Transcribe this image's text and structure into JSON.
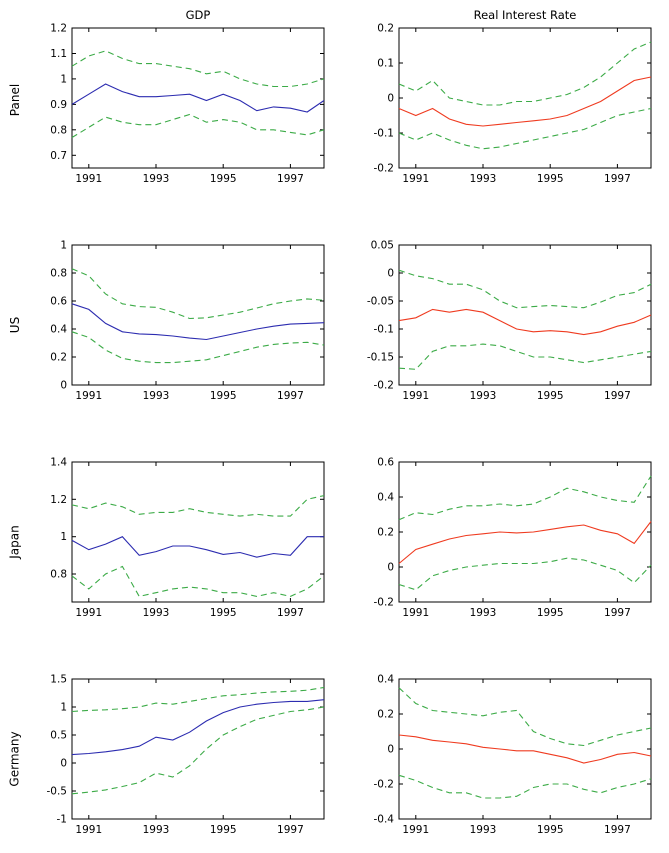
{
  "figure": {
    "column_titles": [
      "GDP",
      "Real Interest Rate"
    ],
    "row_labels": [
      "Panel",
      "US",
      "Japan",
      "Germany"
    ]
  },
  "colors": {
    "line_blue": "#2c2cb0",
    "line_red": "#ef3b20",
    "band_green": "#3cab47",
    "axis_black": "#000000"
  },
  "chart_data": [
    {
      "id": "panel-gdp",
      "type": "line",
      "row": "Panel",
      "title": "GDP",
      "xlabel": "",
      "ylabel": "Panel",
      "xlim": [
        1990.5,
        1998
      ],
      "ylim": [
        0.65,
        1.2
      ],
      "xticks": [
        1991,
        1993,
        1995,
        1997
      ],
      "yticks": [
        0.7,
        0.8,
        0.9,
        1,
        1.1,
        1.2
      ],
      "x": [
        1990.5,
        1991,
        1991.5,
        1992,
        1992.5,
        1993,
        1993.5,
        1994,
        1994.5,
        1995,
        1995.5,
        1996,
        1996.5,
        1997,
        1997.5,
        1998
      ],
      "series": [
        {
          "name": "point-estimate",
          "style": "solid",
          "color": "#2c2cb0",
          "values": [
            0.9,
            0.94,
            0.98,
            0.95,
            0.93,
            0.93,
            0.935,
            0.94,
            0.915,
            0.94,
            0.915,
            0.875,
            0.89,
            0.885,
            0.87,
            0.915
          ]
        },
        {
          "name": "upper-band",
          "style": "dashed",
          "color": "#3cab47",
          "values": [
            1.05,
            1.09,
            1.11,
            1.08,
            1.06,
            1.06,
            1.05,
            1.04,
            1.02,
            1.03,
            1.0,
            0.98,
            0.97,
            0.97,
            0.98,
            1.0
          ]
        },
        {
          "name": "lower-band",
          "style": "dashed",
          "color": "#3cab47",
          "values": [
            0.77,
            0.81,
            0.85,
            0.83,
            0.82,
            0.82,
            0.84,
            0.86,
            0.83,
            0.84,
            0.83,
            0.8,
            0.8,
            0.79,
            0.78,
            0.8
          ]
        }
      ]
    },
    {
      "id": "panel-real-interest-rate",
      "type": "line",
      "row": "Panel",
      "title": "Real Interest Rate",
      "xlabel": "",
      "ylabel": "",
      "xlim": [
        1990.5,
        1998
      ],
      "ylim": [
        -0.2,
        0.2
      ],
      "xticks": [
        1991,
        1993,
        1995,
        1997
      ],
      "yticks": [
        -0.2,
        -0.1,
        0,
        0.1,
        0.2
      ],
      "x": [
        1990.5,
        1991,
        1991.5,
        1992,
        1992.5,
        1993,
        1993.5,
        1994,
        1994.5,
        1995,
        1995.5,
        1996,
        1996.5,
        1997,
        1997.5,
        1998
      ],
      "series": [
        {
          "name": "point-estimate",
          "style": "solid",
          "color": "#ef3b20",
          "values": [
            -0.03,
            -0.05,
            -0.03,
            -0.06,
            -0.075,
            -0.08,
            -0.075,
            -0.07,
            -0.065,
            -0.06,
            -0.05,
            -0.03,
            -0.01,
            0.02,
            0.05,
            0.06
          ]
        },
        {
          "name": "upper-band",
          "style": "dashed",
          "color": "#3cab47",
          "values": [
            0.04,
            0.02,
            0.05,
            0.0,
            -0.01,
            -0.02,
            -0.02,
            -0.01,
            -0.01,
            0.0,
            0.01,
            0.03,
            0.06,
            0.1,
            0.14,
            0.16
          ]
        },
        {
          "name": "lower-band",
          "style": "dashed",
          "color": "#3cab47",
          "values": [
            -0.1,
            -0.12,
            -0.1,
            -0.12,
            -0.135,
            -0.145,
            -0.14,
            -0.13,
            -0.12,
            -0.11,
            -0.1,
            -0.09,
            -0.07,
            -0.05,
            -0.04,
            -0.03
          ]
        }
      ]
    },
    {
      "id": "us-gdp",
      "type": "line",
      "row": "US",
      "title": "",
      "xlabel": "",
      "ylabel": "US",
      "xlim": [
        1990.5,
        1998
      ],
      "ylim": [
        0,
        1
      ],
      "xticks": [
        1991,
        1993,
        1995,
        1997
      ],
      "yticks": [
        0,
        0.2,
        0.4,
        0.6,
        0.8,
        1
      ],
      "x": [
        1990.5,
        1991,
        1991.5,
        1992,
        1992.5,
        1993,
        1993.5,
        1994,
        1994.5,
        1995,
        1995.5,
        1996,
        1996.5,
        1997,
        1997.5,
        1998
      ],
      "series": [
        {
          "name": "point-estimate",
          "style": "solid",
          "color": "#2c2cb0",
          "values": [
            0.58,
            0.54,
            0.44,
            0.38,
            0.365,
            0.36,
            0.35,
            0.335,
            0.325,
            0.35,
            0.375,
            0.4,
            0.42,
            0.435,
            0.44,
            0.445
          ]
        },
        {
          "name": "upper-band",
          "style": "dashed",
          "color": "#3cab47",
          "values": [
            0.83,
            0.78,
            0.65,
            0.58,
            0.56,
            0.555,
            0.52,
            0.475,
            0.48,
            0.5,
            0.52,
            0.55,
            0.58,
            0.6,
            0.615,
            0.605
          ]
        },
        {
          "name": "lower-band",
          "style": "dashed",
          "color": "#3cab47",
          "values": [
            0.38,
            0.34,
            0.25,
            0.19,
            0.17,
            0.16,
            0.16,
            0.17,
            0.18,
            0.21,
            0.24,
            0.27,
            0.29,
            0.3,
            0.305,
            0.285
          ]
        }
      ]
    },
    {
      "id": "us-real-interest-rate",
      "type": "line",
      "row": "US",
      "title": "",
      "xlabel": "",
      "ylabel": "",
      "xlim": [
        1990.5,
        1998
      ],
      "ylim": [
        -0.2,
        0.05
      ],
      "xticks": [
        1991,
        1993,
        1995,
        1997
      ],
      "yticks": [
        -0.2,
        -0.15,
        -0.1,
        -0.05,
        0,
        0.05
      ],
      "x": [
        1990.5,
        1991,
        1991.5,
        1992,
        1992.5,
        1993,
        1993.5,
        1994,
        1994.5,
        1995,
        1995.5,
        1996,
        1996.5,
        1997,
        1997.5,
        1998
      ],
      "series": [
        {
          "name": "point-estimate",
          "style": "solid",
          "color": "#ef3b20",
          "values": [
            -0.085,
            -0.08,
            -0.065,
            -0.07,
            -0.065,
            -0.07,
            -0.085,
            -0.1,
            -0.105,
            -0.103,
            -0.105,
            -0.11,
            -0.105,
            -0.095,
            -0.088,
            -0.075
          ]
        },
        {
          "name": "upper-band",
          "style": "dashed",
          "color": "#3cab47",
          "values": [
            0.005,
            -0.005,
            -0.01,
            -0.02,
            -0.02,
            -0.03,
            -0.05,
            -0.062,
            -0.06,
            -0.058,
            -0.06,
            -0.062,
            -0.052,
            -0.04,
            -0.035,
            -0.02
          ]
        },
        {
          "name": "lower-band",
          "style": "dashed",
          "color": "#3cab47",
          "values": [
            -0.17,
            -0.172,
            -0.14,
            -0.13,
            -0.13,
            -0.127,
            -0.13,
            -0.14,
            -0.15,
            -0.15,
            -0.155,
            -0.16,
            -0.155,
            -0.15,
            -0.145,
            -0.14
          ]
        }
      ]
    },
    {
      "id": "japan-gdp",
      "type": "line",
      "row": "Japan",
      "title": "",
      "xlabel": "",
      "ylabel": "Japan",
      "xlim": [
        1990.5,
        1998
      ],
      "ylim": [
        0.65,
        1.4
      ],
      "xticks": [
        1991,
        1993,
        1995,
        1997
      ],
      "yticks": [
        0.8,
        1,
        1.2,
        1.4
      ],
      "x": [
        1990.5,
        1991,
        1991.5,
        1992,
        1992.5,
        1993,
        1993.5,
        1994,
        1994.5,
        1995,
        1995.5,
        1996,
        1996.5,
        1997,
        1997.5,
        1998
      ],
      "series": [
        {
          "name": "point-estimate",
          "style": "solid",
          "color": "#2c2cb0",
          "values": [
            0.98,
            0.93,
            0.96,
            1.0,
            0.9,
            0.92,
            0.95,
            0.95,
            0.93,
            0.905,
            0.915,
            0.89,
            0.91,
            0.9,
            1.0,
            1.0
          ]
        },
        {
          "name": "upper-band",
          "style": "dashed",
          "color": "#3cab47",
          "values": [
            1.17,
            1.15,
            1.18,
            1.16,
            1.12,
            1.13,
            1.13,
            1.15,
            1.13,
            1.12,
            1.11,
            1.12,
            1.11,
            1.11,
            1.2,
            1.22
          ]
        },
        {
          "name": "lower-band",
          "style": "dashed",
          "color": "#3cab47",
          "values": [
            0.79,
            0.72,
            0.8,
            0.84,
            0.68,
            0.7,
            0.72,
            0.73,
            0.72,
            0.7,
            0.7,
            0.68,
            0.7,
            0.68,
            0.72,
            0.79
          ]
        }
      ]
    },
    {
      "id": "japan-real-interest-rate",
      "type": "line",
      "row": "Japan",
      "title": "",
      "xlabel": "",
      "ylabel": "",
      "xlim": [
        1990.5,
        1998
      ],
      "ylim": [
        -0.2,
        0.6
      ],
      "xticks": [
        1991,
        1993,
        1995,
        1997
      ],
      "yticks": [
        -0.2,
        0,
        0.2,
        0.4,
        0.6
      ],
      "x": [
        1990.5,
        1991,
        1991.5,
        1992,
        1992.5,
        1993,
        1993.5,
        1994,
        1994.5,
        1995,
        1995.5,
        1996,
        1996.5,
        1997,
        1997.5,
        1998
      ],
      "series": [
        {
          "name": "point-estimate",
          "style": "solid",
          "color": "#ef3b20",
          "values": [
            0.02,
            0.1,
            0.13,
            0.16,
            0.18,
            0.19,
            0.2,
            0.195,
            0.2,
            0.215,
            0.23,
            0.24,
            0.21,
            0.19,
            0.135,
            0.26
          ]
        },
        {
          "name": "upper-band",
          "style": "dashed",
          "color": "#3cab47",
          "values": [
            0.27,
            0.31,
            0.3,
            0.33,
            0.35,
            0.35,
            0.36,
            0.35,
            0.36,
            0.4,
            0.45,
            0.43,
            0.4,
            0.38,
            0.37,
            0.52
          ]
        },
        {
          "name": "lower-band",
          "style": "dashed",
          "color": "#3cab47",
          "values": [
            -0.1,
            -0.13,
            -0.05,
            -0.02,
            0.0,
            0.01,
            0.02,
            0.02,
            0.02,
            0.03,
            0.05,
            0.04,
            0.01,
            -0.02,
            -0.09,
            0.01
          ]
        }
      ]
    },
    {
      "id": "germany-gdp",
      "type": "line",
      "row": "Germany",
      "title": "",
      "xlabel": "",
      "ylabel": "Germany",
      "xlim": [
        1990.5,
        1998
      ],
      "ylim": [
        -1,
        1.5
      ],
      "xticks": [
        1991,
        1993,
        1995,
        1997
      ],
      "yticks": [
        -1,
        -0.5,
        0,
        0.5,
        1,
        1.5
      ],
      "x": [
        1990.5,
        1991,
        1991.5,
        1992,
        1992.5,
        1993,
        1993.5,
        1994,
        1994.5,
        1995,
        1995.5,
        1996,
        1996.5,
        1997,
        1997.5,
        1998
      ],
      "series": [
        {
          "name": "point-estimate",
          "style": "solid",
          "color": "#2c2cb0",
          "values": [
            0.15,
            0.17,
            0.2,
            0.24,
            0.3,
            0.46,
            0.41,
            0.55,
            0.75,
            0.9,
            1.0,
            1.05,
            1.08,
            1.1,
            1.1,
            1.13
          ]
        },
        {
          "name": "upper-band",
          "style": "dashed",
          "color": "#3cab47",
          "values": [
            0.92,
            0.94,
            0.95,
            0.97,
            1.0,
            1.07,
            1.05,
            1.1,
            1.15,
            1.2,
            1.22,
            1.25,
            1.27,
            1.28,
            1.3,
            1.35
          ]
        },
        {
          "name": "lower-band",
          "style": "dashed",
          "color": "#3cab47",
          "values": [
            -0.55,
            -0.52,
            -0.48,
            -0.42,
            -0.35,
            -0.18,
            -0.25,
            -0.05,
            0.25,
            0.5,
            0.65,
            0.78,
            0.85,
            0.92,
            0.95,
            1.0
          ]
        }
      ]
    },
    {
      "id": "germany-real-interest-rate",
      "type": "line",
      "row": "Germany",
      "title": "",
      "xlabel": "",
      "ylabel": "",
      "xlim": [
        1990.5,
        1998
      ],
      "ylim": [
        -0.4,
        0.4
      ],
      "xticks": [
        1991,
        1993,
        1995,
        1997
      ],
      "yticks": [
        -0.4,
        -0.2,
        0,
        0.2,
        0.4
      ],
      "x": [
        1990.5,
        1991,
        1991.5,
        1992,
        1992.5,
        1993,
        1993.5,
        1994,
        1994.5,
        1995,
        1995.5,
        1996,
        1996.5,
        1997,
        1997.5,
        1998
      ],
      "series": [
        {
          "name": "point-estimate",
          "style": "solid",
          "color": "#ef3b20",
          "values": [
            0.08,
            0.07,
            0.05,
            0.04,
            0.03,
            0.01,
            0.0,
            -0.01,
            -0.01,
            -0.03,
            -0.05,
            -0.08,
            -0.06,
            -0.03,
            -0.02,
            -0.04
          ]
        },
        {
          "name": "upper-band",
          "style": "dashed",
          "color": "#3cab47",
          "values": [
            0.35,
            0.26,
            0.22,
            0.21,
            0.2,
            0.19,
            0.21,
            0.22,
            0.1,
            0.06,
            0.03,
            0.02,
            0.05,
            0.08,
            0.1,
            0.12
          ]
        },
        {
          "name": "lower-band",
          "style": "dashed",
          "color": "#3cab47",
          "values": [
            -0.15,
            -0.18,
            -0.22,
            -0.25,
            -0.25,
            -0.28,
            -0.28,
            -0.27,
            -0.22,
            -0.2,
            -0.2,
            -0.23,
            -0.25,
            -0.22,
            -0.2,
            -0.17
          ]
        }
      ]
    }
  ]
}
